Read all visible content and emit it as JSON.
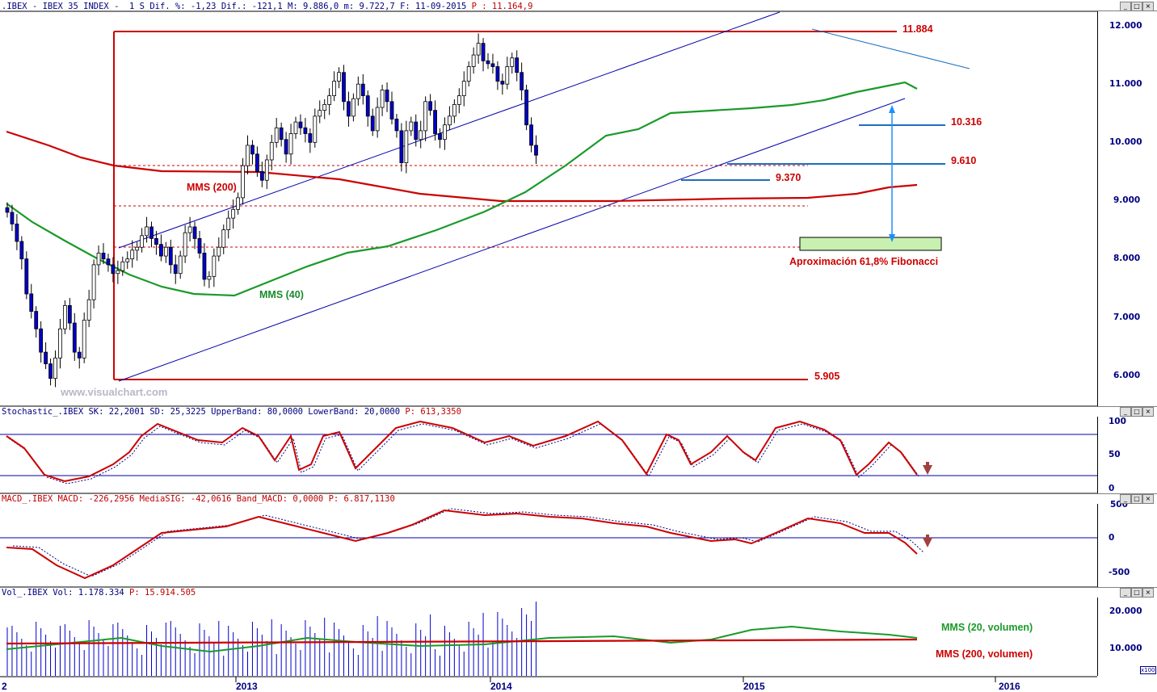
{
  "header": {
    "main": ".IBEX - IBEX 35 INDEX -  1 S Dif. %: -1,23 Dif.: -121,1 M: 9.886,0 m: 9.722,7 F: 11-09-2015",
    "main_last": " P : 11.164,9",
    "stoch": "Stochastic_.IBEX SK: 22,2001 SD: 25,3225 UpperBand: 80,0000 LowerBand: 20,0000",
    "stoch_last": " P: 613,3350",
    "macd": "MACD_.IBEX MACD: -226,2956 MediaSIG: -42,0616 Band_MACD: 0,0000",
    "macd_last": " P: 6.817,1130",
    "vol": "Vol_.IBEX Vol: 1.178.334",
    "vol_last": " P: 15.914.505"
  },
  "watermark": "www.visualchart.com",
  "annotations": {
    "level_high": "11.884",
    "level_10316": "10.316",
    "level_9610": "9.610",
    "level_9370": "9.370",
    "level_low": "5.905",
    "mms200": "MMS (200)",
    "mms40": "MMS (40)",
    "fib": "Aproximación 61,8% Fibonacci",
    "vol_mms20": "MMS (20, volumen)",
    "vol_mms200": "MMS (200, volumen)",
    "x100": "x100"
  },
  "x_axis": {
    "labels": [
      "2",
      "2013",
      "2014",
      "2015",
      "2016"
    ]
  },
  "y_axis": {
    "price": [
      "12.000",
      "11.000",
      "10.000",
      "9.000",
      "8.000",
      "7.000",
      "6.000"
    ],
    "stoch": [
      "100",
      "50",
      "0"
    ],
    "macd": [
      "500",
      "0",
      "-500"
    ],
    "vol": [
      "20.000",
      "10.000"
    ]
  },
  "window_buttons": [
    "_",
    "□",
    "×"
  ],
  "colors": {
    "candle_up": "#ffffff",
    "candle_down": "#0000cc",
    "mms200": "#cc0000",
    "mms40": "#1a9a2a",
    "trend": "#0000aa",
    "fib_box": "#c8f0b0",
    "arrow": "#1e90ff",
    "signal_arrow": "#a04040"
  },
  "chart_data": {
    "type": "candlestick",
    "title": "IBEX 35 INDEX (weekly)",
    "price_ylim": [
      5500,
      12200
    ],
    "levels": [
      11884,
      10316,
      9610,
      9370,
      5905
    ],
    "fibonacci_target_zone": [
      8200,
      8350
    ],
    "weekly_close_approx": [
      8800,
      8600,
      8300,
      8000,
      7400,
      7100,
      6800,
      6400,
      6200,
      5950,
      6300,
      6800,
      7200,
      6900,
      6400,
      6300,
      6950,
      7300,
      7900,
      8100,
      8000,
      7900,
      7750,
      7800,
      7950,
      8000,
      8150,
      8200,
      8400,
      8550,
      8350,
      8250,
      8050,
      8200,
      7900,
      7750,
      8050,
      8450,
      8550,
      8350,
      8100,
      7650,
      7700,
      8050,
      8200,
      8500,
      8700,
      8850,
      9050,
      9600,
      9950,
      9800,
      9500,
      9350,
      9700,
      10000,
      10250,
      10050,
      9800,
      10150,
      10350,
      10250,
      10150,
      10000,
      10450,
      10550,
      10650,
      10800,
      11050,
      11200,
      10700,
      10450,
      10750,
      11000,
      10800,
      10450,
      10200,
      10600,
      10900,
      10700,
      10400,
      10200,
      9650,
      10200,
      10350,
      10050,
      10200,
      10700,
      10550,
      10150,
      10050,
      10300,
      10450,
      10650,
      10800,
      11050,
      11300,
      11500,
      11700,
      11400,
      11350,
      11300,
      11050,
      11000,
      11300,
      11450,
      11200,
      10900,
      10300,
      9950,
      9780
    ],
    "stochastic": {
      "sk": 22.2001,
      "sd": 25.3225,
      "upper": 80,
      "lower": 20
    },
    "macd": {
      "macd": -226.2956,
      "signal": -42.0616,
      "band": 0
    },
    "volume_last": 1178334
  }
}
